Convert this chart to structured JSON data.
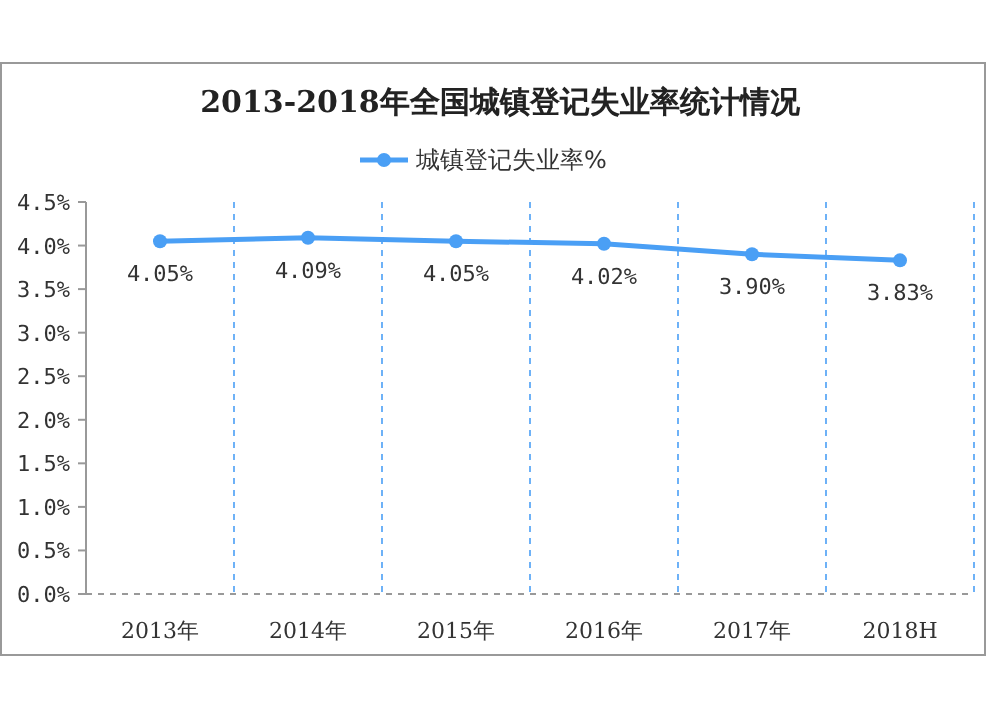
{
  "chart_data": {
    "type": "line",
    "title": "2013-2018年全国城镇登记失业率统计情况",
    "categories": [
      "2013年",
      "2014年",
      "2015年",
      "2016年",
      "2017年",
      "2018H"
    ],
    "series": [
      {
        "name": "城镇登记失业率%",
        "color": "#4a9ff5",
        "values": [
          4.05,
          4.09,
          4.05,
          4.02,
          3.9,
          3.83
        ],
        "value_labels": [
          "4.05%",
          "4.09%",
          "4.05%",
          "4.02%",
          "3.90%",
          "3.83%"
        ]
      }
    ],
    "ylim": [
      0,
      4.5
    ],
    "yticks": [
      {
        "value": 0,
        "label": "0.0%"
      },
      {
        "value": 0.5,
        "label": "0.5%"
      },
      {
        "value": 1,
        "label": "1.0%"
      },
      {
        "value": 1.5,
        "label": "1.5%"
      },
      {
        "value": 2,
        "label": "2.0%"
      },
      {
        "value": 2.5,
        "label": "2.5%"
      },
      {
        "value": 3,
        "label": "3.0%"
      },
      {
        "value": 3.5,
        "label": "3.5%"
      },
      {
        "value": 4,
        "label": "4.0%"
      },
      {
        "value": 4.5,
        "label": "4.5%"
      }
    ],
    "grid": "x",
    "legend": "top",
    "marker": "circle",
    "line_style": "solid"
  }
}
